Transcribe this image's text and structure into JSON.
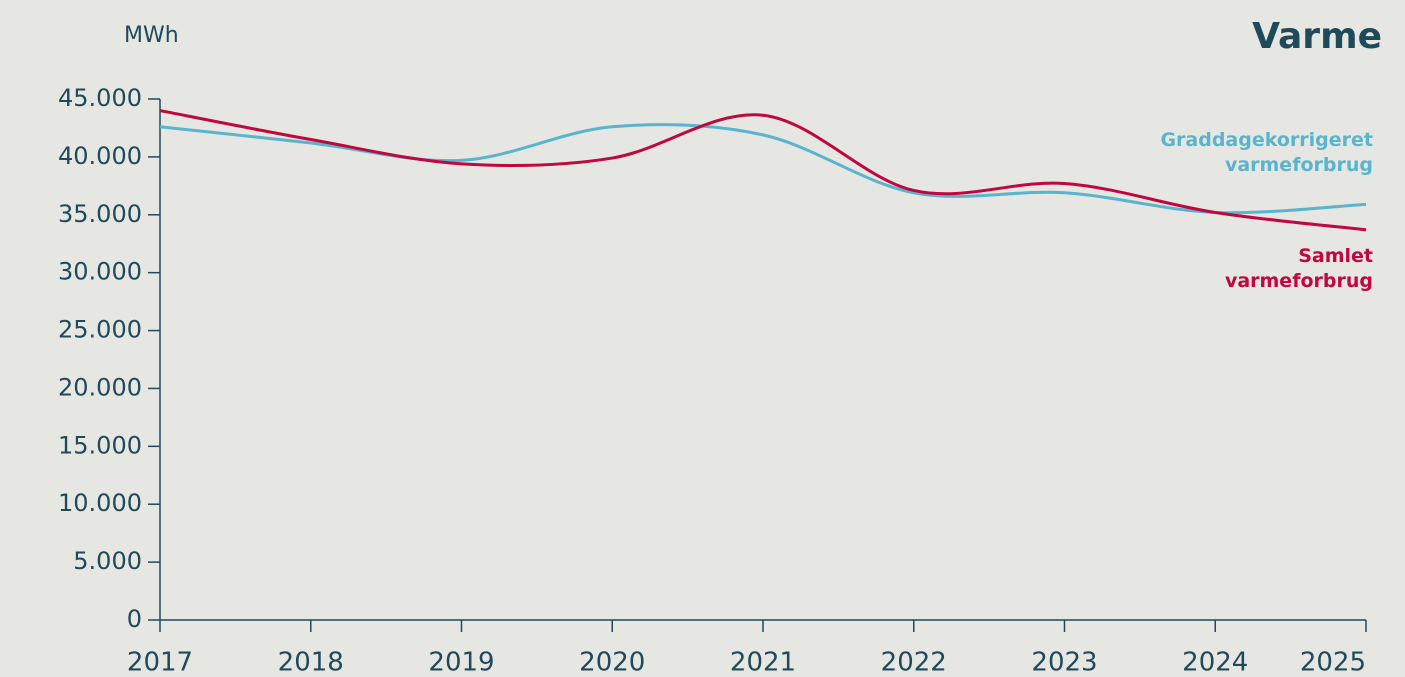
{
  "chart_data": {
    "type": "line",
    "title": "Varme",
    "y_label": "MWh",
    "categories": [
      "2017",
      "2018",
      "2019",
      "2020",
      "2021",
      "2022",
      "2023",
      "2024",
      "2025"
    ],
    "series": [
      {
        "name": "Graddagekorrigeret varmeforbrug",
        "color": "#5ab4cc",
        "values": [
          42600,
          41200,
          39700,
          42600,
          41900,
          36900,
          36900,
          35200,
          35900
        ]
      },
      {
        "name": "Samlet varmeforbrug",
        "color": "#c0073f",
        "values": [
          44000,
          41500,
          39400,
          39900,
          43600,
          37100,
          37700,
          35200,
          33700
        ]
      }
    ],
    "ylim": [
      0,
      45000
    ],
    "yticks": [
      0,
      {
        "value": 5000,
        "label": "5.000"
      },
      {
        "value": 10000,
        "label": "10.000"
      },
      {
        "value": 15000,
        "label": "15.000"
      },
      {
        "value": 20000,
        "label": "20.000"
      },
      {
        "value": 25000,
        "label": "25.000"
      },
      {
        "value": 30000,
        "label": "30.000"
      },
      {
        "value": 35000,
        "label": "35.000"
      },
      {
        "value": 40000,
        "label": "40.000"
      },
      {
        "value": 45000,
        "label": "45.000"
      }
    ],
    "smooth": true
  }
}
